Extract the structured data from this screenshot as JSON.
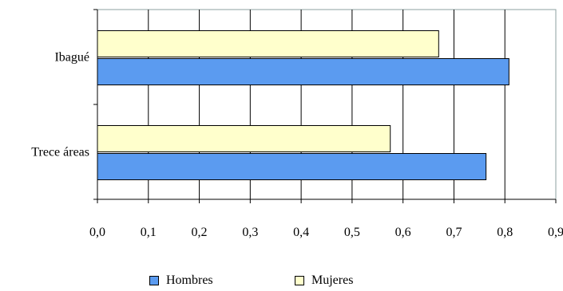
{
  "chart_data": {
    "type": "bar",
    "orientation": "horizontal",
    "categories": [
      "Trece áreas",
      "Ibagué"
    ],
    "series": [
      {
        "name": "Hombres",
        "color": "#5b9bf0",
        "values": [
          0.763,
          0.808
        ]
      },
      {
        "name": "Mujeres",
        "color": "#ffffcc",
        "values": [
          0.575,
          0.67
        ]
      }
    ],
    "xlim": [
      0,
      0.9
    ],
    "xticks": [
      "0,0",
      "0,1",
      "0,2",
      "0,3",
      "0,4",
      "0,5",
      "0,6",
      "0,7",
      "0,8",
      "0,9"
    ],
    "grid": "vertical",
    "legend_position": "bottom",
    "title": "",
    "xlabel": "",
    "ylabel": ""
  },
  "legend": {
    "hombres_label": "Hombres",
    "mujeres_label": "Mujeres"
  }
}
